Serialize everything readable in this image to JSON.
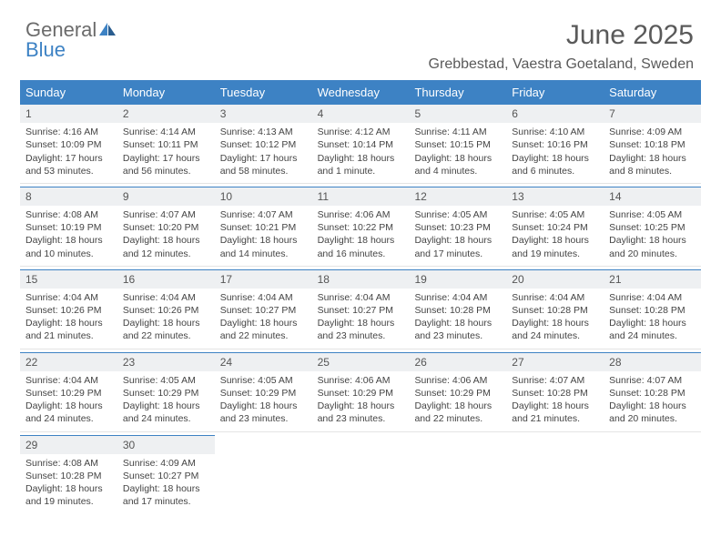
{
  "brand": {
    "part1": "General",
    "part2": "Blue"
  },
  "title": "June 2025",
  "subtitle": "Grebbestad, Vaestra Goetaland, Sweden",
  "colors": {
    "accent": "#3d82c4",
    "headerBg": "#3d82c4",
    "dayBg": "#eef0f2"
  },
  "dayHeaders": [
    "Sunday",
    "Monday",
    "Tuesday",
    "Wednesday",
    "Thursday",
    "Friday",
    "Saturday"
  ],
  "weeks": [
    [
      {
        "n": "1",
        "sr": "Sunrise: 4:16 AM",
        "ss": "Sunset: 10:09 PM",
        "dl": "Daylight: 17 hours and 53 minutes."
      },
      {
        "n": "2",
        "sr": "Sunrise: 4:14 AM",
        "ss": "Sunset: 10:11 PM",
        "dl": "Daylight: 17 hours and 56 minutes."
      },
      {
        "n": "3",
        "sr": "Sunrise: 4:13 AM",
        "ss": "Sunset: 10:12 PM",
        "dl": "Daylight: 17 hours and 58 minutes."
      },
      {
        "n": "4",
        "sr": "Sunrise: 4:12 AM",
        "ss": "Sunset: 10:14 PM",
        "dl": "Daylight: 18 hours and 1 minute."
      },
      {
        "n": "5",
        "sr": "Sunrise: 4:11 AM",
        "ss": "Sunset: 10:15 PM",
        "dl": "Daylight: 18 hours and 4 minutes."
      },
      {
        "n": "6",
        "sr": "Sunrise: 4:10 AM",
        "ss": "Sunset: 10:16 PM",
        "dl": "Daylight: 18 hours and 6 minutes."
      },
      {
        "n": "7",
        "sr": "Sunrise: 4:09 AM",
        "ss": "Sunset: 10:18 PM",
        "dl": "Daylight: 18 hours and 8 minutes."
      }
    ],
    [
      {
        "n": "8",
        "sr": "Sunrise: 4:08 AM",
        "ss": "Sunset: 10:19 PM",
        "dl": "Daylight: 18 hours and 10 minutes."
      },
      {
        "n": "9",
        "sr": "Sunrise: 4:07 AM",
        "ss": "Sunset: 10:20 PM",
        "dl": "Daylight: 18 hours and 12 minutes."
      },
      {
        "n": "10",
        "sr": "Sunrise: 4:07 AM",
        "ss": "Sunset: 10:21 PM",
        "dl": "Daylight: 18 hours and 14 minutes."
      },
      {
        "n": "11",
        "sr": "Sunrise: 4:06 AM",
        "ss": "Sunset: 10:22 PM",
        "dl": "Daylight: 18 hours and 16 minutes."
      },
      {
        "n": "12",
        "sr": "Sunrise: 4:05 AM",
        "ss": "Sunset: 10:23 PM",
        "dl": "Daylight: 18 hours and 17 minutes."
      },
      {
        "n": "13",
        "sr": "Sunrise: 4:05 AM",
        "ss": "Sunset: 10:24 PM",
        "dl": "Daylight: 18 hours and 19 minutes."
      },
      {
        "n": "14",
        "sr": "Sunrise: 4:05 AM",
        "ss": "Sunset: 10:25 PM",
        "dl": "Daylight: 18 hours and 20 minutes."
      }
    ],
    [
      {
        "n": "15",
        "sr": "Sunrise: 4:04 AM",
        "ss": "Sunset: 10:26 PM",
        "dl": "Daylight: 18 hours and 21 minutes."
      },
      {
        "n": "16",
        "sr": "Sunrise: 4:04 AM",
        "ss": "Sunset: 10:26 PM",
        "dl": "Daylight: 18 hours and 22 minutes."
      },
      {
        "n": "17",
        "sr": "Sunrise: 4:04 AM",
        "ss": "Sunset: 10:27 PM",
        "dl": "Daylight: 18 hours and 22 minutes."
      },
      {
        "n": "18",
        "sr": "Sunrise: 4:04 AM",
        "ss": "Sunset: 10:27 PM",
        "dl": "Daylight: 18 hours and 23 minutes."
      },
      {
        "n": "19",
        "sr": "Sunrise: 4:04 AM",
        "ss": "Sunset: 10:28 PM",
        "dl": "Daylight: 18 hours and 23 minutes."
      },
      {
        "n": "20",
        "sr": "Sunrise: 4:04 AM",
        "ss": "Sunset: 10:28 PM",
        "dl": "Daylight: 18 hours and 24 minutes."
      },
      {
        "n": "21",
        "sr": "Sunrise: 4:04 AM",
        "ss": "Sunset: 10:28 PM",
        "dl": "Daylight: 18 hours and 24 minutes."
      }
    ],
    [
      {
        "n": "22",
        "sr": "Sunrise: 4:04 AM",
        "ss": "Sunset: 10:29 PM",
        "dl": "Daylight: 18 hours and 24 minutes."
      },
      {
        "n": "23",
        "sr": "Sunrise: 4:05 AM",
        "ss": "Sunset: 10:29 PM",
        "dl": "Daylight: 18 hours and 24 minutes."
      },
      {
        "n": "24",
        "sr": "Sunrise: 4:05 AM",
        "ss": "Sunset: 10:29 PM",
        "dl": "Daylight: 18 hours and 23 minutes."
      },
      {
        "n": "25",
        "sr": "Sunrise: 4:06 AM",
        "ss": "Sunset: 10:29 PM",
        "dl": "Daylight: 18 hours and 23 minutes."
      },
      {
        "n": "26",
        "sr": "Sunrise: 4:06 AM",
        "ss": "Sunset: 10:29 PM",
        "dl": "Daylight: 18 hours and 22 minutes."
      },
      {
        "n": "27",
        "sr": "Sunrise: 4:07 AM",
        "ss": "Sunset: 10:28 PM",
        "dl": "Daylight: 18 hours and 21 minutes."
      },
      {
        "n": "28",
        "sr": "Sunrise: 4:07 AM",
        "ss": "Sunset: 10:28 PM",
        "dl": "Daylight: 18 hours and 20 minutes."
      }
    ],
    [
      {
        "n": "29",
        "sr": "Sunrise: 4:08 AM",
        "ss": "Sunset: 10:28 PM",
        "dl": "Daylight: 18 hours and 19 minutes."
      },
      {
        "n": "30",
        "sr": "Sunrise: 4:09 AM",
        "ss": "Sunset: 10:27 PM",
        "dl": "Daylight: 18 hours and 17 minutes."
      },
      null,
      null,
      null,
      null,
      null
    ]
  ]
}
